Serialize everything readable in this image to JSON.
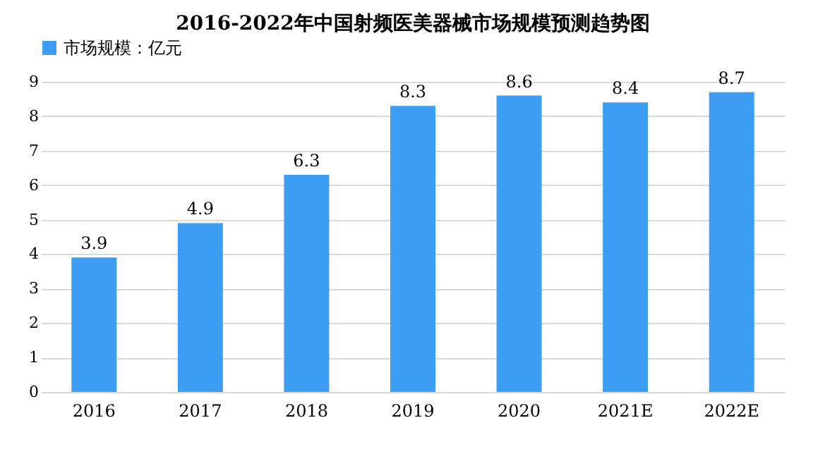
{
  "chart_data": {
    "type": "bar",
    "title": "2016-2022年中国射频医美器械市场规模预测趋势图",
    "categories": [
      "2016",
      "2017",
      "2018",
      "2019",
      "2020",
      "2021E",
      "2022E"
    ],
    "series": [
      {
        "name": "市场规模：亿元",
        "color": "#3d9df2",
        "values": [
          3.9,
          4.9,
          6.3,
          8.3,
          8.6,
          8.4,
          8.7
        ]
      }
    ],
    "ylim": [
      0,
      9
    ],
    "yticks": [
      0,
      1,
      2,
      3,
      4,
      5,
      6,
      7,
      8,
      9
    ],
    "grid": "y",
    "legend": "top",
    "data_labels": true
  }
}
